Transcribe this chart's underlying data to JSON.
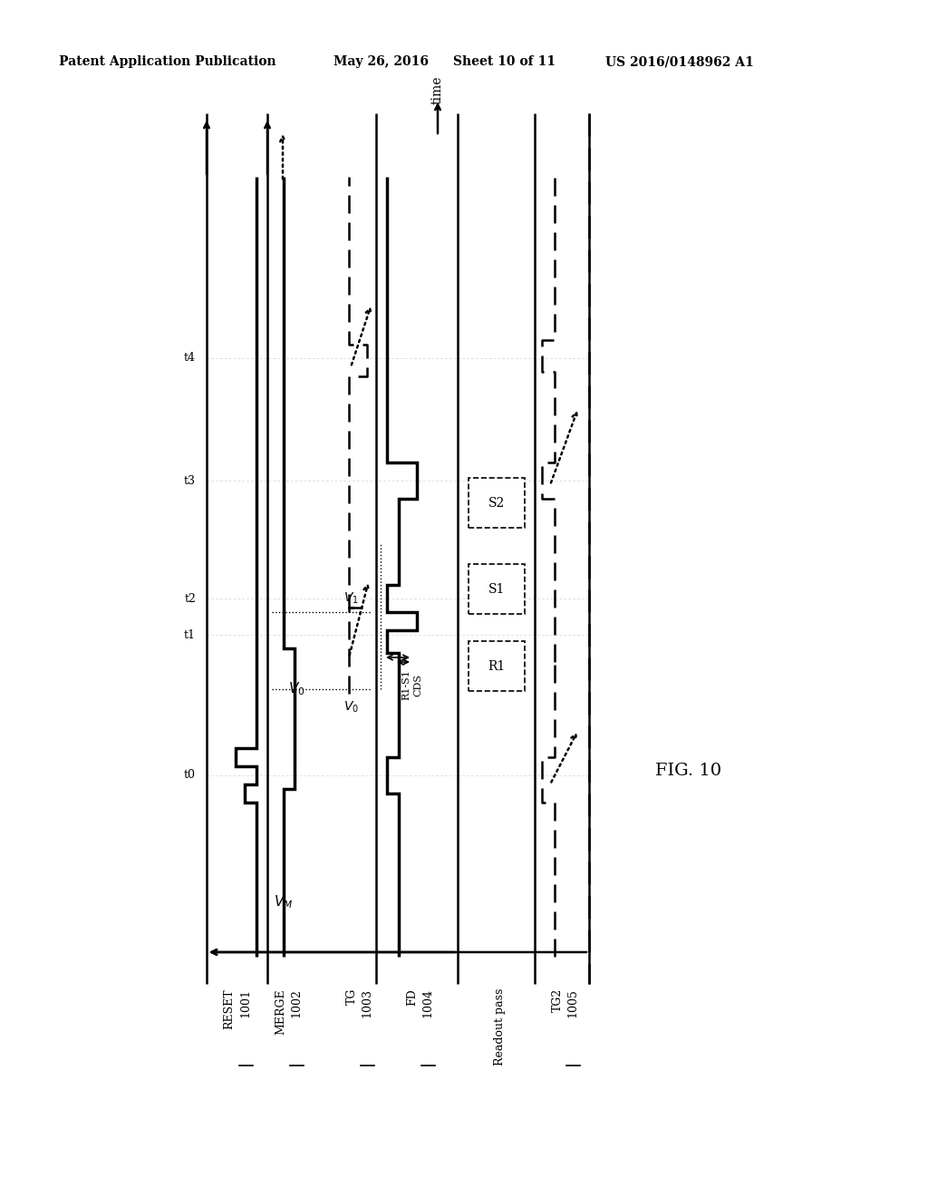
{
  "header_left": "Patent Application Publication",
  "header_mid": "May 26, 2016  Sheet 10 of 11",
  "header_right": "US 2016/0148962 A1",
  "fig_label": "FIG. 10",
  "background_color": "#ffffff"
}
